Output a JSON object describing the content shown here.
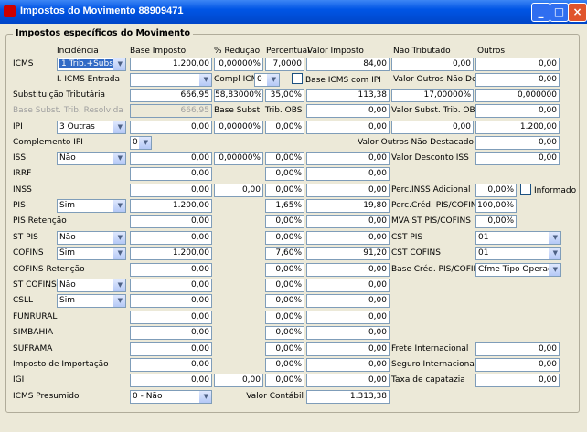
{
  "window": {
    "title": "Impostos do Movimento 88909471"
  },
  "group": {
    "title": "Impostos específicos do Movimento"
  },
  "headers": [
    "Incidência",
    "Base Imposto",
    "% Redução",
    "Percentual",
    "Valor Imposto",
    "Não Tributado",
    "Outros"
  ],
  "rows": [
    [
      "ICMS",
      "1 Trib.+Subst.",
      "1.200,00",
      "0,00000%",
      "7,0000",
      "84,00",
      "0,00",
      "0,00"
    ],
    [
      "I. ICMS Entrada",
      "Compl ICMS",
      "0",
      "Base ICMS com IPI",
      "Valor Outros Não Destacado",
      "0,00"
    ],
    [
      "Substituição Tributária",
      "666,95",
      "58,83000%",
      "35,00%",
      "113,38",
      "17,00000%",
      "0,000000"
    ],
    [
      "Base Subst. Trib. Resolvida",
      "666,95",
      "Base Subst. Trib. OBS",
      "0,00",
      "Valor Subst. Trib. OBS",
      "0,00"
    ],
    [
      "IPI",
      "3 Outras",
      "0,00",
      "0,00000%",
      "0,00%",
      "0,00",
      "0,00",
      "1.200,00"
    ],
    [
      "Complemento IPI",
      "0",
      "Valor Outros Não Destacado",
      "0,00"
    ],
    [
      "ISS",
      "Não",
      "0,00",
      "0,00000%",
      "0,00%",
      "0,00",
      "Valor Desconto ISS",
      "0,00"
    ],
    [
      "IRRF",
      "0,00",
      "0,00%",
      "0,00"
    ],
    [
      "INSS",
      "0,00",
      "0,00",
      "0,00%",
      "0,00",
      "Perc.INSS Adicional",
      "0,00%",
      "Informado"
    ],
    [
      "PIS",
      "Sim",
      "1.200,00",
      "1,65%",
      "19,80",
      "Perc.Créd. PIS/COFINS",
      "100,00%"
    ],
    [
      "PIS Retenção",
      "0,00",
      "0,00%",
      "0,00",
      "MVA ST PIS/COFINS",
      "0,00%"
    ],
    [
      "ST PIS",
      "Não",
      "0,00",
      "0,00%",
      "0,00",
      "CST PIS",
      "01"
    ],
    [
      "COFINS",
      "Sim",
      "1.200,00",
      "7,60%",
      "91,20",
      "CST COFINS",
      "01"
    ],
    [
      "COFINS Retenção",
      "0,00",
      "0,00%",
      "0,00",
      "Base Créd. PIS/COFINS",
      "Cfme Tipo Operação"
    ],
    [
      "ST COFINS",
      "Não",
      "0,00",
      "0,00%",
      "0,00"
    ],
    [
      "CSLL",
      "Sim",
      "0,00",
      "0,00%",
      "0,00"
    ],
    [
      "FUNRURAL",
      "0,00",
      "0,00%",
      "0,00"
    ],
    [
      "SIMBAHIA",
      "0,00",
      "0,00%",
      "0,00"
    ],
    [
      "SUFRAMA",
      "0,00",
      "0,00%",
      "0,00",
      "Frete Internacional",
      "0,00"
    ],
    [
      "Imposto de Importação",
      "0,00",
      "0,00%",
      "0,00",
      "Seguro Internacional",
      "0,00"
    ],
    [
      "IGI",
      "0,00",
      "0,00",
      "0,00%",
      "0,00",
      "Taxa de capatazia",
      "0,00"
    ],
    [
      "ICMS Presumido",
      "0 - Não",
      "Valor Contábil",
      "1.313,38"
    ]
  ]
}
